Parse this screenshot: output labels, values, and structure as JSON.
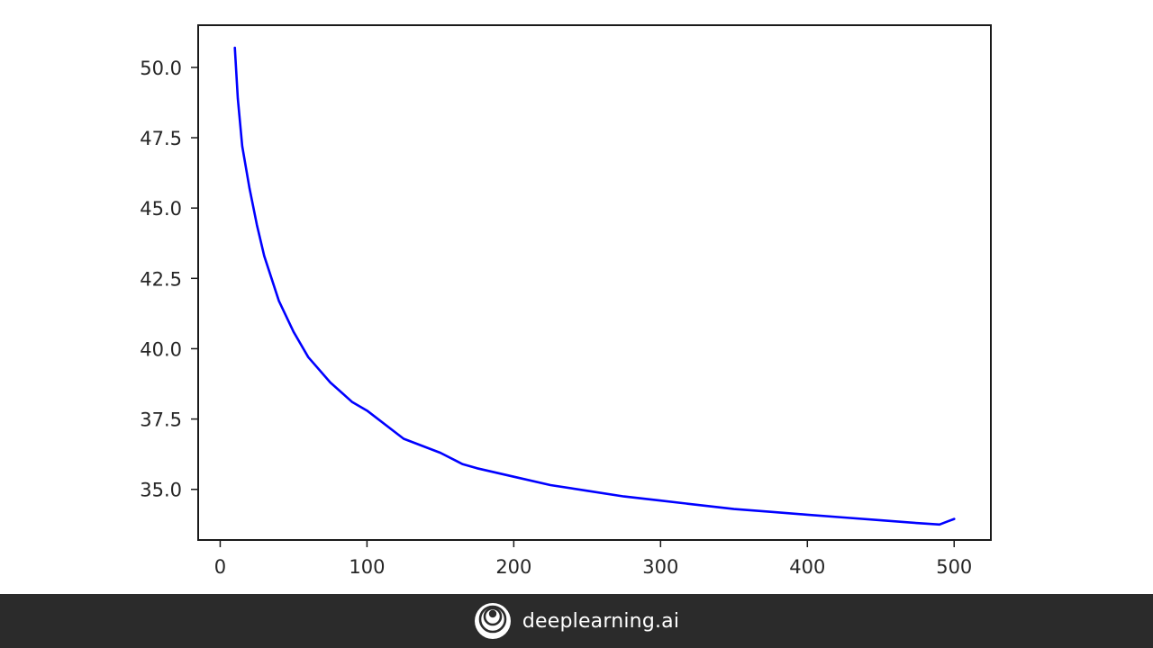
{
  "chart_data": {
    "type": "line",
    "title": "",
    "xlabel": "",
    "ylabel": "",
    "xlim": [
      -15,
      525
    ],
    "ylim": [
      33.2,
      51.5
    ],
    "xticks": [
      0,
      100,
      200,
      300,
      400,
      500
    ],
    "yticks": [
      35.0,
      37.5,
      40.0,
      42.5,
      45.0,
      47.5,
      50.0
    ],
    "xtick_labels": [
      "0",
      "100",
      "200",
      "300",
      "400",
      "500"
    ],
    "ytick_labels": [
      "35.0",
      "37.5",
      "40.0",
      "42.5",
      "45.0",
      "47.5",
      "50.0"
    ],
    "grid": false,
    "series": [
      {
        "color": "#0000ff",
        "x": [
          10,
          12,
          15,
          20,
          25,
          30,
          40,
          50,
          60,
          75,
          90,
          100,
          125,
          150,
          165,
          175,
          200,
          225,
          250,
          275,
          300,
          325,
          350,
          375,
          400,
          425,
          450,
          475,
          490,
          495,
          500
        ],
        "y": [
          50.7,
          48.9,
          47.2,
          45.7,
          44.4,
          43.3,
          41.7,
          40.6,
          39.7,
          38.8,
          38.1,
          37.8,
          36.8,
          36.3,
          35.9,
          35.75,
          35.45,
          35.15,
          34.95,
          34.75,
          34.6,
          34.45,
          34.3,
          34.2,
          34.1,
          34.0,
          33.9,
          33.8,
          33.75,
          33.85,
          33.95
        ]
      }
    ]
  },
  "footer": {
    "brand": "deeplearning.ai",
    "logo_icon": "concentric-circles-logo"
  }
}
